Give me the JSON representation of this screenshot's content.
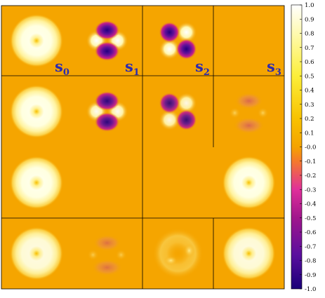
{
  "chart_data": {
    "type": "heatmap",
    "title": "",
    "xlabel": "",
    "ylabel": "",
    "background_value": 0.0,
    "colormap": "plasma-like (dark blue → purple → magenta → orange → yellow → white)",
    "colorbar": {
      "min": -1.0,
      "max": 1.0,
      "ticks": [
        "1.0",
        "0.9",
        "0.8",
        "0.7",
        "0.6",
        "0.5",
        "0.4",
        "0.3",
        "0.2",
        "0.1",
        "-0.0",
        "-0.1",
        "-0.2",
        "-0.3",
        "-0.4",
        "-0.5",
        "-0.6",
        "-0.7",
        "-0.8",
        "-0.9",
        "-1.0"
      ],
      "placement": "right"
    },
    "column_labels": [
      {
        "base": "s",
        "sub": "0"
      },
      {
        "base": "s",
        "sub": "1"
      },
      {
        "base": "s",
        "sub": "2"
      },
      {
        "base": "s",
        "sub": "3"
      }
    ],
    "panel_grid": {
      "rows": 4,
      "cols": 4,
      "rows_spec": [
        [
          {
            "pattern": "ring",
            "amp": 1.0
          },
          {
            "pattern": "quad-vertical",
            "amp": 1.0
          },
          {
            "pattern": "quad-diagonal",
            "amp": 1.0
          },
          {
            "pattern": "none",
            "amp": 0
          }
        ],
        [
          {
            "pattern": "ring",
            "amp": 1.0
          },
          {
            "pattern": "quad-vertical",
            "amp": 0.95
          },
          {
            "pattern": "quad-diagonal",
            "amp": 0.9
          },
          {
            "pattern": "faint-vertical",
            "amp": 0.35
          }
        ],
        [
          {
            "pattern": "ring",
            "amp": 1.0
          },
          {
            "pattern": "none",
            "amp": 0
          },
          {
            "pattern": "none",
            "amp": 0
          },
          {
            "pattern": "ring",
            "amp": 1.0
          }
        ],
        [
          {
            "pattern": "ring",
            "amp": 0.95
          },
          {
            "pattern": "faint-vertical",
            "amp": 0.3
          },
          {
            "pattern": "faint-ring",
            "amp": 0.3
          },
          {
            "pattern": "ring",
            "amp": 0.95
          }
        ]
      ]
    }
  }
}
